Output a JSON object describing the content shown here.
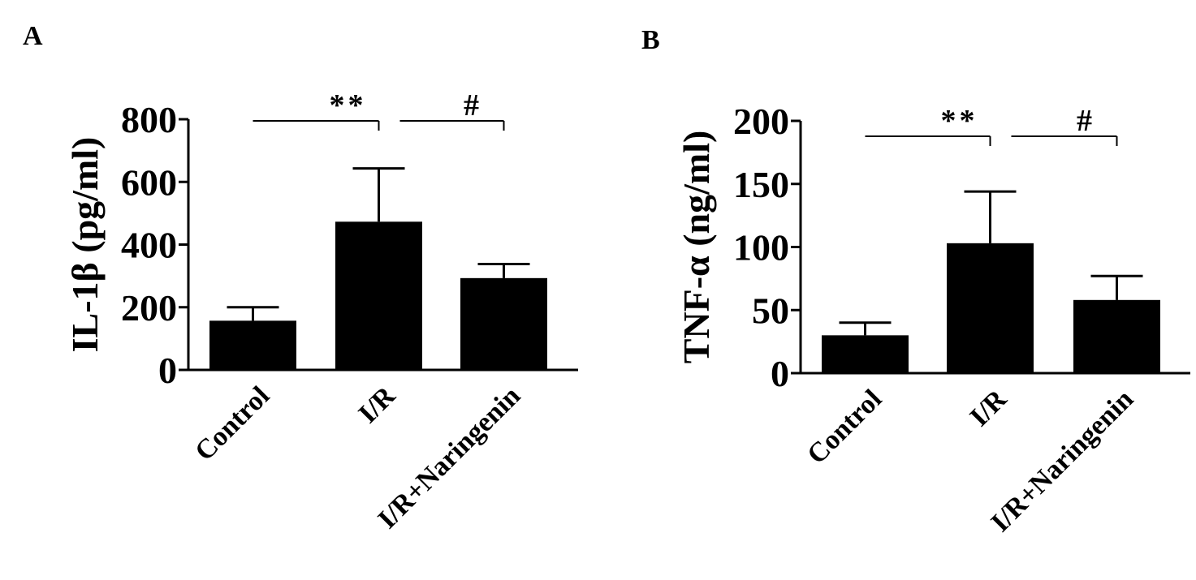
{
  "chart_data": [
    {
      "panel": "A",
      "type": "bar",
      "categories": [
        "Control",
        "I/R",
        "I/R+Naringenin"
      ],
      "values": [
        157,
        473,
        293
      ],
      "errors": [
        43,
        170,
        45
      ],
      "ylabel": "IL-1β (pg/ml)",
      "yticks": [
        0,
        200,
        400,
        600,
        800
      ],
      "ylim": [
        0,
        800
      ],
      "grid": false,
      "bar_color": "#000000",
      "significance": [
        {
          "from": 0,
          "to": 1,
          "label": "**"
        },
        {
          "from": 1,
          "to": 2,
          "label": "#"
        }
      ]
    },
    {
      "panel": "B",
      "type": "bar",
      "categories": [
        "Control",
        "I/R",
        "I/R+Naringenin"
      ],
      "values": [
        30,
        103,
        58
      ],
      "errors": [
        10,
        41,
        19
      ],
      "ylabel": "TNF-α (ng/ml)",
      "yticks": [
        0,
        50,
        100,
        150,
        200
      ],
      "ylim": [
        0,
        200
      ],
      "grid": false,
      "bar_color": "#000000",
      "significance": [
        {
          "from": 0,
          "to": 1,
          "label": "**"
        },
        {
          "from": 1,
          "to": 2,
          "label": "#"
        }
      ]
    }
  ]
}
